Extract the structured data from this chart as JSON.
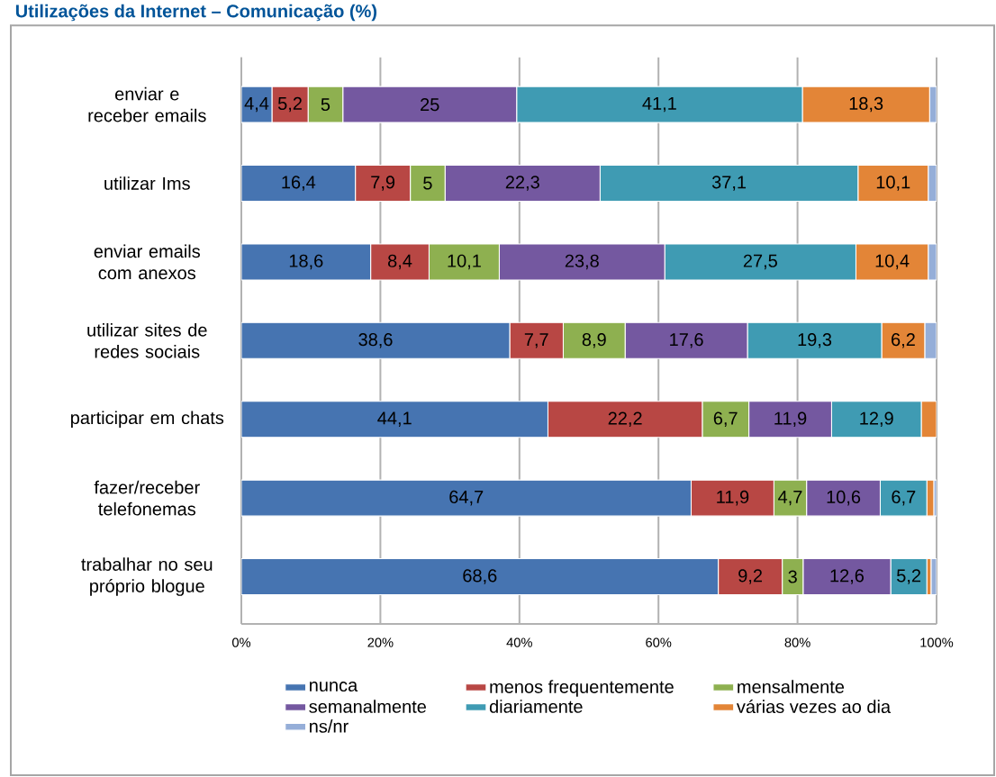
{
  "chart_data": {
    "type": "bar",
    "orientation": "horizontal",
    "stacked": true,
    "title": "Utilizações da Internet – Comunicação (%)",
    "categories": [
      "enviar e receber emails",
      "utilizar Ims",
      "enviar emails com anexos",
      "utilizar sites de redes sociais",
      "participar em chats",
      "fazer/receber telefonemas",
      "trabalhar no seu próprio blogue"
    ],
    "series": [
      {
        "name": "nunca",
        "color": "#4674b1",
        "values": [
          4.4,
          16.4,
          18.6,
          38.6,
          44.1,
          64.7,
          68.6
        ],
        "value_labels": [
          "4,4",
          "16,4",
          "18,6",
          "38,6",
          "44,1",
          "64,7",
          "68,6"
        ]
      },
      {
        "name": "menos frequentemente",
        "color": "#b84744",
        "values": [
          5.2,
          7.9,
          8.4,
          7.7,
          22.2,
          11.9,
          9.2
        ],
        "value_labels": [
          "5,2",
          "7,9",
          "8,4",
          "7,7",
          "22,2",
          "11,9",
          "9,2"
        ]
      },
      {
        "name": "mensalmente",
        "color": "#8eb050",
        "values": [
          5,
          5,
          10.1,
          8.9,
          6.7,
          4.7,
          3
        ],
        "value_labels": [
          "5",
          "5",
          "10,1",
          "8,9",
          "6,7",
          "4,7",
          "3"
        ]
      },
      {
        "name": "semanalmente",
        "color": "#7458a0",
        "values": [
          25,
          22.3,
          23.8,
          17.6,
          11.9,
          10.6,
          12.6
        ],
        "value_labels": [
          "25",
          "22,3",
          "23,8",
          "17,6",
          "11,9",
          "10,6",
          "12,6"
        ]
      },
      {
        "name": "diariamente",
        "color": "#3f9bb3",
        "values": [
          41.1,
          37.1,
          27.5,
          19.3,
          12.9,
          6.7,
          5.2
        ],
        "value_labels": [
          "41,1",
          "37,1",
          "27,5",
          "19,3",
          "12,9",
          "6,7",
          "5,2"
        ]
      },
      {
        "name": "várias vezes ao dia",
        "color": "#e38537",
        "values": [
          18.3,
          10.1,
          10.4,
          6.2,
          2.2,
          1,
          0.6
        ],
        "value_labels": [
          "18,3",
          "10,1",
          "10,4",
          "6,2",
          null,
          null,
          null
        ]
      },
      {
        "name": "ns/nr",
        "color": "#95aed8",
        "values": [
          1,
          1.2,
          1.2,
          1.7,
          0,
          0.4,
          0.8
        ],
        "value_labels": [
          null,
          null,
          null,
          null,
          null,
          null,
          null
        ]
      }
    ],
    "xlim": [
      0,
      100
    ],
    "xticks": [
      {
        "value": 0,
        "label": "0%"
      },
      {
        "value": 20,
        "label": "20%"
      },
      {
        "value": 40,
        "label": "40%"
      },
      {
        "value": 60,
        "label": "60%"
      },
      {
        "value": 80,
        "label": "80%"
      },
      {
        "value": 100,
        "label": "100%"
      }
    ],
    "grid": "x",
    "legend": "bottom"
  }
}
